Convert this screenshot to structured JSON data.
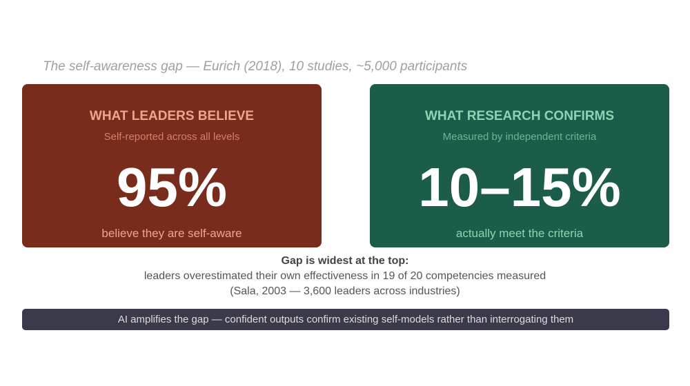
{
  "subtitle": "The self-awareness gap — Eurich (2018), 10 studies, ~5,000 participants",
  "cards": [
    {
      "heading": "WHAT LEADERS BELIEVE",
      "sub": "Self-reported across all levels",
      "stat": "95%",
      "caption": "believe they are self-aware"
    },
    {
      "heading": "WHAT RESEARCH CONFIRMS",
      "sub": "Measured by independent criteria",
      "stat": "10–15%",
      "caption": "actually meet the criteria"
    }
  ],
  "gap": {
    "title": "Gap is widest at the top:",
    "line1": "leaders overestimated their own effectiveness in 19 of 20 competencies measured",
    "line2": "(Sala, 2003 — 3,600 leaders across industries)"
  },
  "banner": "AI amplifies the gap — confident outputs confirm existing self-models rather than interrogating them"
}
